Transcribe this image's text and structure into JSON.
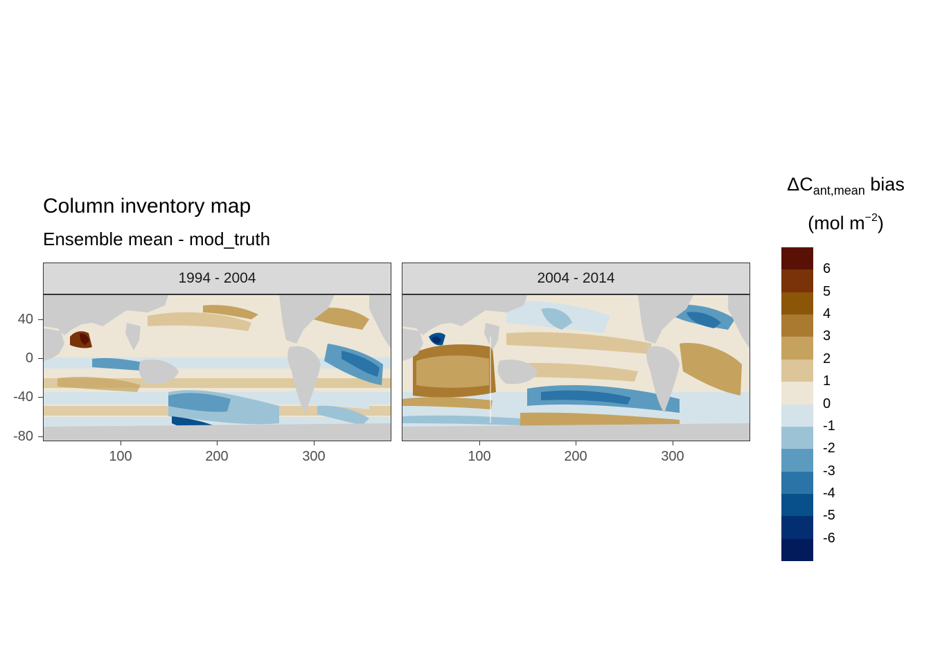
{
  "title": "Column inventory map",
  "subtitle": "Ensemble mean - mod_truth",
  "panels": [
    {
      "label": "1994 - 2004"
    },
    {
      "label": "2004 - 2014"
    }
  ],
  "y_ticks": [
    "40",
    "0",
    "-40",
    "-80"
  ],
  "x_ticks": [
    "100",
    "200",
    "300"
  ],
  "legend": {
    "title_main": "ΔC",
    "title_sub": "ant,mean",
    "title_after": " bias",
    "unit_open": "(mol m",
    "unit_sup": "−2",
    "unit_close": ")",
    "labels": [
      "6",
      "5",
      "4",
      "3",
      "2",
      "1",
      "0",
      "-1",
      "-2",
      "-3",
      "-4",
      "-5",
      "-6"
    ],
    "colors": [
      "#5a1105",
      "#7a3208",
      "#8c5608",
      "#a97a30",
      "#c5a25e",
      "#dcc699",
      "#ede6d6",
      "#d4e3ea",
      "#9cc2d6",
      "#5c9bbf",
      "#2b74a7",
      "#07508c",
      "#032f72",
      "#021b5a"
    ]
  },
  "map_colors": {
    "land": "#cccccc",
    "neutral": "#ede6d6",
    "light_blue": "#d4e3ea",
    "mid_blue": "#9cc2d6",
    "blue": "#5c9bbf",
    "dark_blue": "#2b74a7",
    "navy": "#032f72",
    "tan_light": "#dcc699",
    "tan": "#c5a25e",
    "brown": "#a97a30",
    "dark_brown": "#7a3208"
  }
}
